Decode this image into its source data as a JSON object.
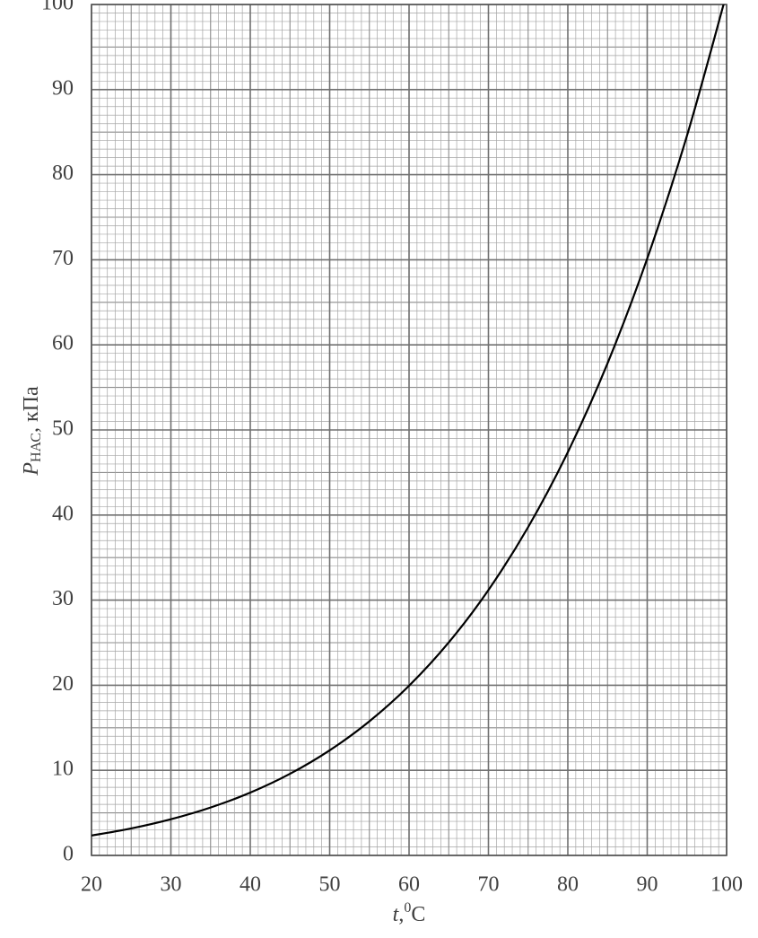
{
  "chart_data": {
    "type": "line",
    "ylabel": {
      "symbol": "P",
      "subscript": "НАС",
      "unit": ", кПа"
    },
    "xlabel": {
      "symbol": "t",
      "separator": ",",
      "superscript": "0",
      "unit": "C"
    },
    "x": [
      20,
      25,
      30,
      35,
      40,
      45,
      50,
      55,
      60,
      65,
      70,
      75,
      80,
      85,
      90,
      95,
      100
    ],
    "series": [
      {
        "color": "#000000",
        "values": [
          2.34,
          3.17,
          4.25,
          5.63,
          7.38,
          9.59,
          12.35,
          15.76,
          19.94,
          25.03,
          31.19,
          38.58,
          47.39,
          57.83,
          70.14,
          84.55,
          101.3
        ]
      }
    ],
    "xlim": [
      20,
      100
    ],
    "xticks": [
      20,
      30,
      40,
      50,
      60,
      70,
      80,
      90,
      100
    ],
    "ylim": [
      0,
      100
    ],
    "yticks": [
      0,
      10,
      20,
      30,
      40,
      50,
      60,
      70,
      80,
      90,
      100
    ],
    "grid": true
  }
}
